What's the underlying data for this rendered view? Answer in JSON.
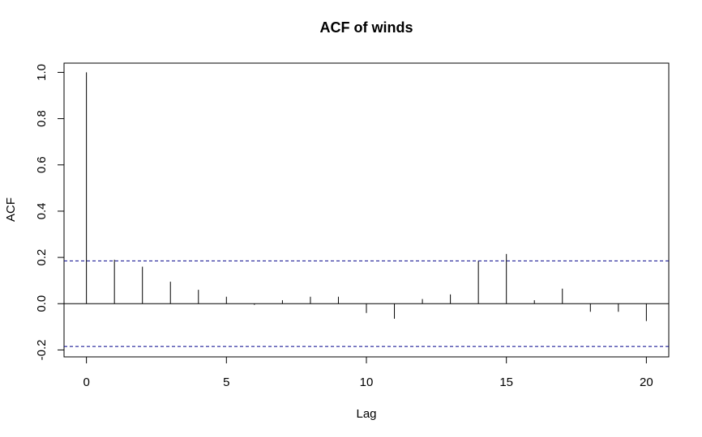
{
  "chart_data": {
    "type": "bar",
    "title": "ACF of winds",
    "xlabel": "Lag",
    "ylabel": "ACF",
    "xlim": [
      -0.8,
      20.8
    ],
    "ylim": [
      -0.23,
      1.04
    ],
    "x_ticks": [
      0,
      5,
      10,
      15,
      20
    ],
    "y_ticks": [
      -0.2,
      0.0,
      0.2,
      0.4,
      0.6,
      0.8,
      1.0
    ],
    "y_tick_labels": [
      "-0.2",
      "0.0",
      "0.2",
      "0.4",
      "0.6",
      "0.8",
      "1.0"
    ],
    "lags": [
      0,
      1,
      2,
      3,
      4,
      5,
      6,
      7,
      8,
      9,
      10,
      11,
      12,
      13,
      14,
      15,
      16,
      17,
      18,
      19,
      20
    ],
    "values": [
      1.0,
      0.19,
      0.16,
      0.095,
      0.06,
      0.03,
      -0.005,
      0.015,
      0.03,
      0.03,
      -0.04,
      -0.065,
      0.02,
      0.04,
      0.185,
      0.215,
      0.015,
      0.065,
      -0.035,
      -0.035,
      -0.075
    ],
    "confidence_bound": 0.185,
    "grid": false,
    "colors": {
      "bars": "#000000",
      "confidence": "#00008B",
      "zero_line": "#000000"
    }
  }
}
